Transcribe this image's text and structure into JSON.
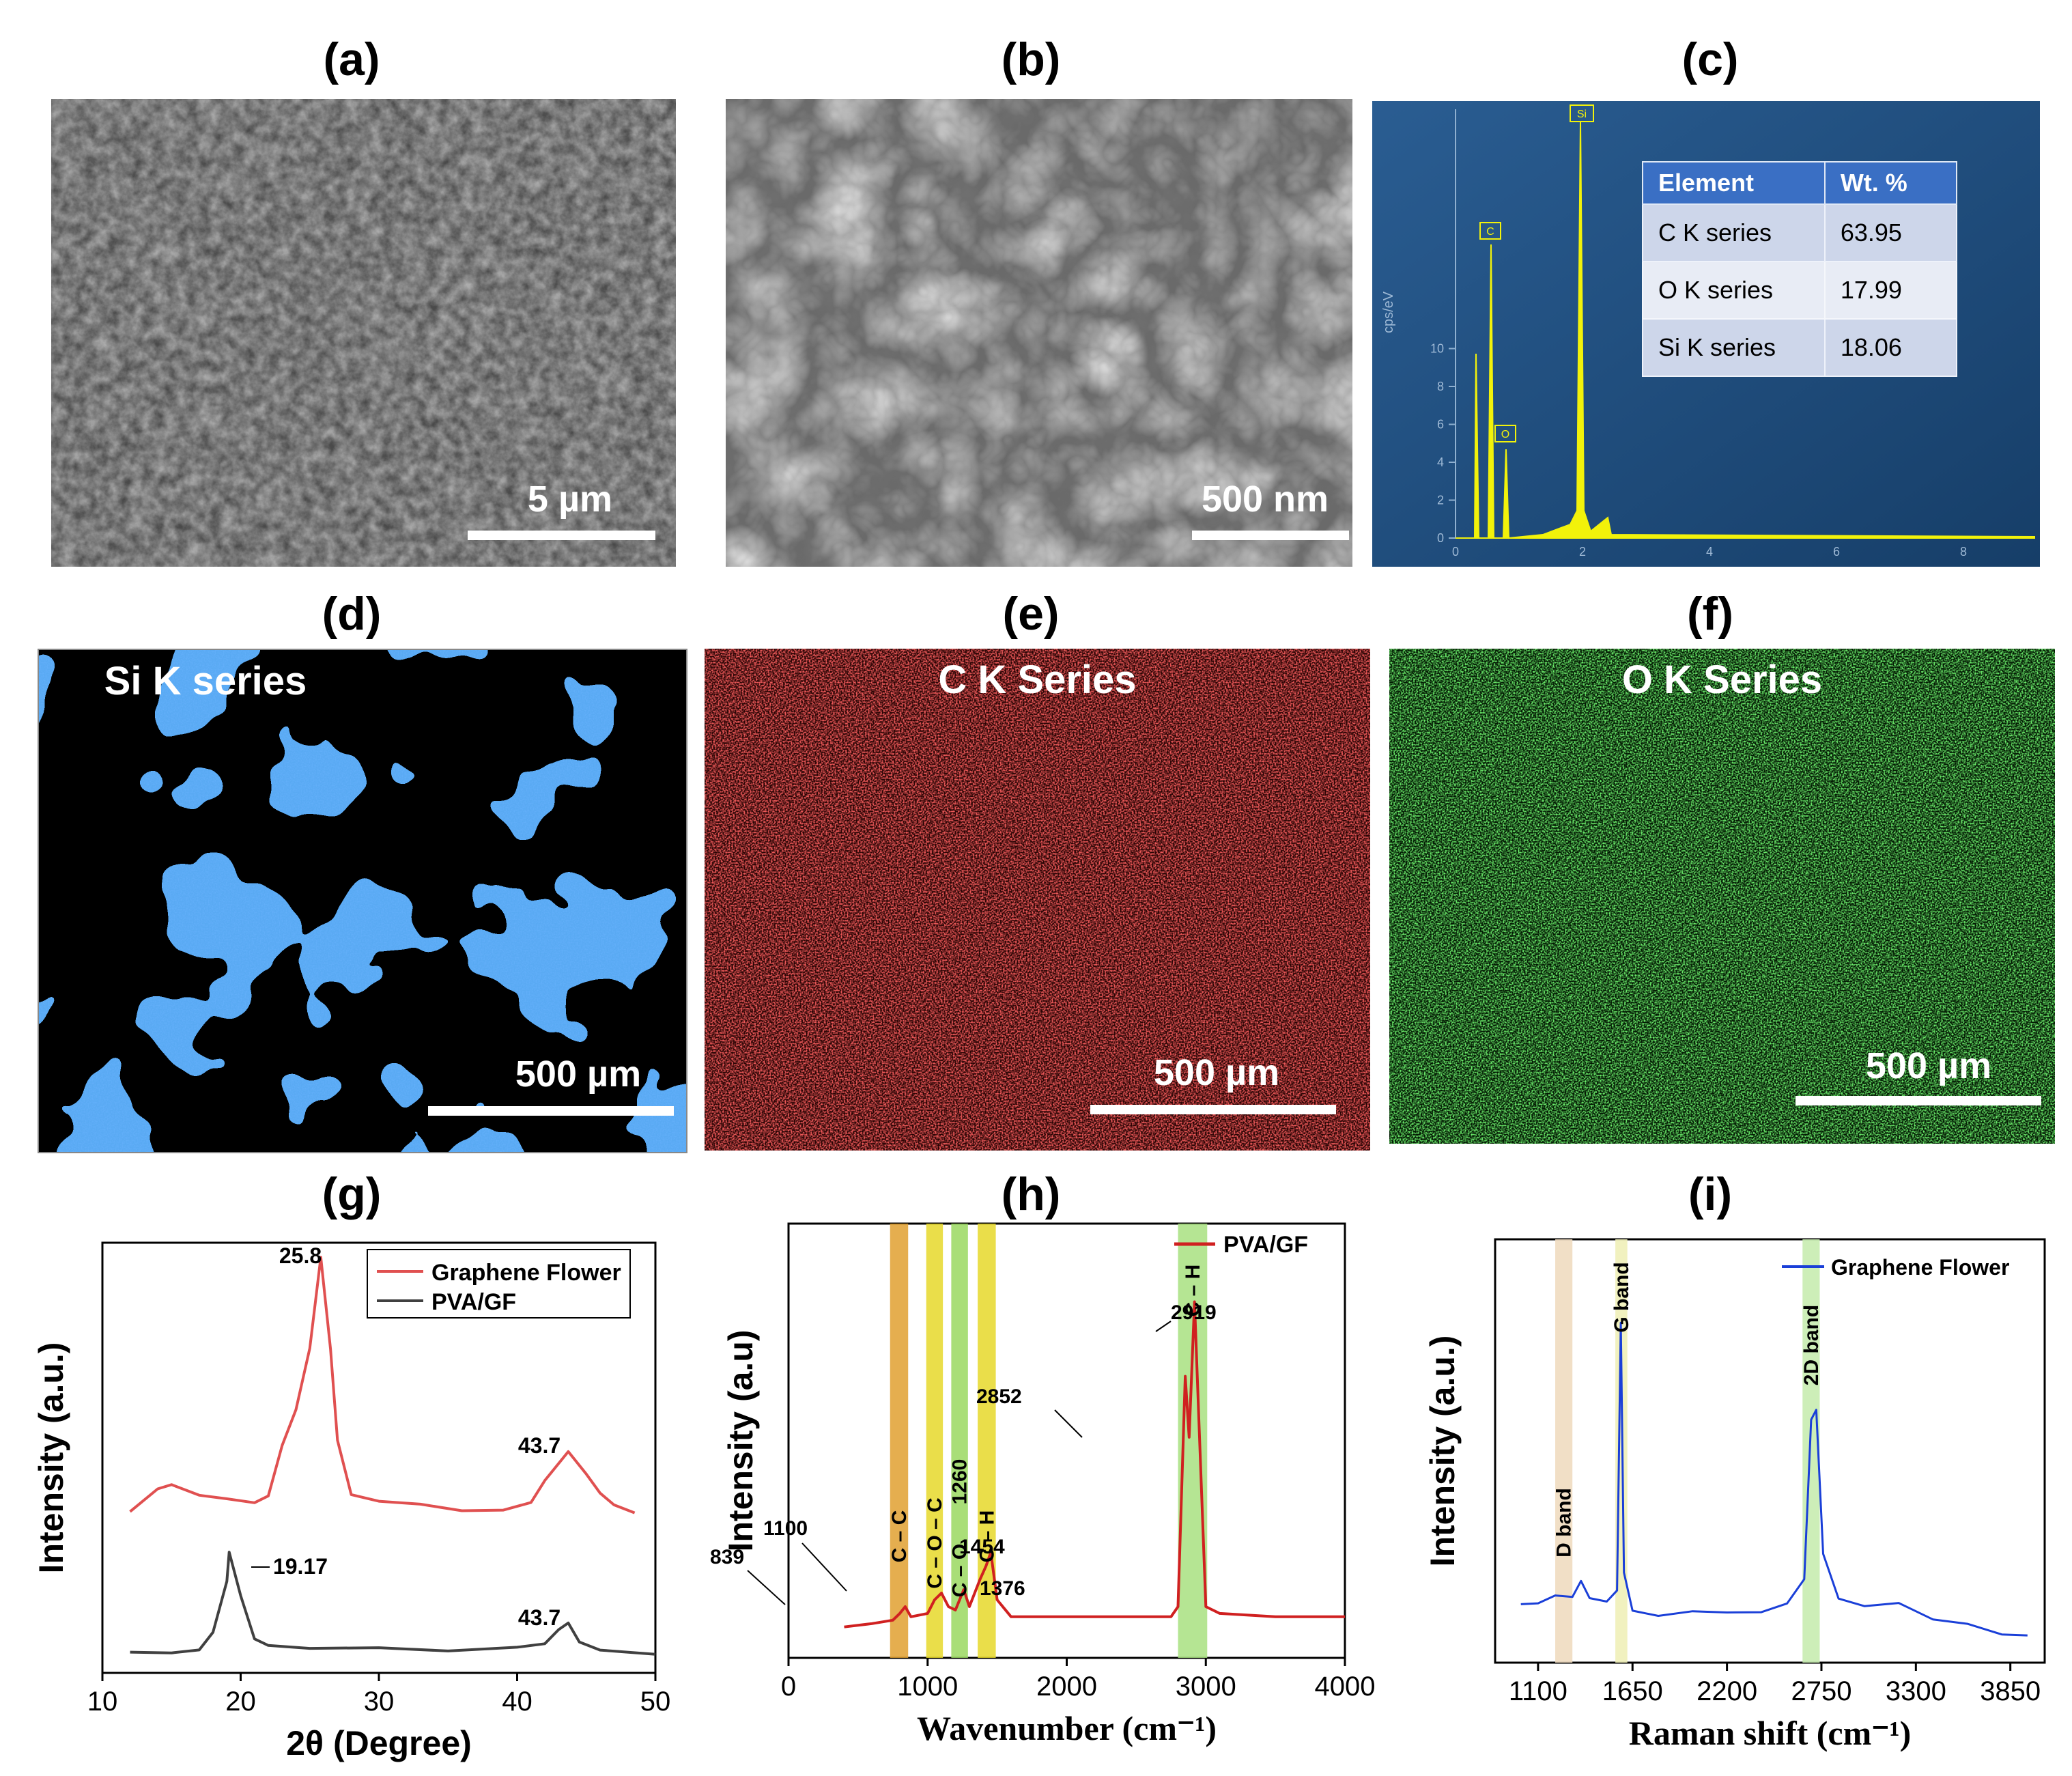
{
  "panel_labels": [
    "(a)",
    "(b)",
    "(c)",
    "(d)",
    "(e)",
    "(f)",
    "(g)",
    "(h)",
    "(i)"
  ],
  "sem": {
    "a": {
      "scale": "5 µm"
    },
    "b": {
      "scale": "500 nm"
    }
  },
  "edx": {
    "y_axis_label": "cps/eV",
    "y_ticks": [
      "0",
      "2",
      "4",
      "6",
      "8",
      "10"
    ],
    "x_ticks": [
      "0",
      "2",
      "4",
      "6",
      "8"
    ],
    "peak_labels": [
      "Si",
      "C",
      "O"
    ],
    "table": {
      "headers": [
        "Element",
        "Wt. %"
      ],
      "rows": [
        {
          "element": "C K series",
          "wt": "63.95"
        },
        {
          "element": "O K series",
          "wt": "17.99"
        },
        {
          "element": "Si K series",
          "wt": "18.06"
        }
      ]
    },
    "colors": {
      "bg": "#1d4a7a",
      "spectrum": "#f2f20a",
      "header": "#3a6fc4"
    }
  },
  "maps": [
    {
      "title": "Si K series",
      "scale": "500 µm",
      "color": "#2a6fe0"
    },
    {
      "title": "C K Series",
      "scale": "500 µm",
      "color": "#d42020"
    },
    {
      "title": "O K Series",
      "scale": "500 µm",
      "color": "#20c020"
    }
  ],
  "chart_data": [
    {
      "panel": "g",
      "type": "line",
      "xlabel": "2θ (Degree)",
      "ylabel": "Intensity (a.u.)",
      "xlim": [
        10,
        50
      ],
      "x_ticks": [
        "10",
        "20",
        "30",
        "40",
        "50"
      ],
      "series": [
        {
          "name": "Graphene Flower",
          "color": "#e05050",
          "x": [
            12,
            14,
            15,
            17,
            19,
            21,
            22,
            23,
            24,
            25,
            25.8,
            26.5,
            27,
            28,
            30,
            33,
            36,
            39,
            41,
            42,
            43.7,
            45,
            46,
            47,
            48.5
          ],
          "y": [
            0.3,
            0.36,
            0.37,
            0.34,
            0.33,
            0.32,
            0.34,
            0.48,
            0.58,
            0.75,
            1.0,
            0.75,
            0.5,
            0.35,
            0.33,
            0.32,
            0.3,
            0.3,
            0.32,
            0.38,
            0.46,
            0.4,
            0.35,
            0.32,
            0.3
          ]
        },
        {
          "name": "PVA/GF",
          "color": "#404040",
          "x": [
            12,
            15,
            17,
            18,
            19,
            19.17,
            20,
            21,
            22,
            25,
            30,
            35,
            40,
            42,
            43,
            43.7,
            44.5,
            46,
            50
          ],
          "y": [
            0.02,
            0.02,
            0.03,
            0.08,
            0.22,
            0.3,
            0.18,
            0.06,
            0.04,
            0.03,
            0.03,
            0.02,
            0.03,
            0.04,
            0.08,
            0.1,
            0.05,
            0.03,
            0.02
          ]
        }
      ],
      "annotations": [
        "25.8",
        "43.7",
        "19.17",
        "43.7"
      ]
    },
    {
      "panel": "h",
      "type": "line",
      "xlabel": "Wavenumber (cm⁻¹)",
      "ylabel": "Intensity (a.u)",
      "xlim": [
        0,
        4000
      ],
      "x_ticks": [
        "0",
        "1000",
        "2000",
        "3000",
        "4000"
      ],
      "series": [
        {
          "name": "PVA/GF",
          "color": "#d02020",
          "x": [
            400,
            600,
            750,
            800,
            839,
            880,
            1000,
            1050,
            1100,
            1150,
            1200,
            1260,
            1300,
            1376,
            1420,
            1454,
            1500,
            1600,
            2000,
            2500,
            2750,
            2800,
            2852,
            2880,
            2919,
            2950,
            3000,
            3100,
            3500,
            4000
          ],
          "y": [
            0.04,
            0.05,
            0.06,
            0.08,
            0.1,
            0.07,
            0.08,
            0.12,
            0.14,
            0.1,
            0.09,
            0.15,
            0.1,
            0.18,
            0.22,
            0.26,
            0.12,
            0.07,
            0.07,
            0.07,
            0.07,
            0.1,
            0.78,
            0.6,
            1.0,
            0.65,
            0.1,
            0.08,
            0.07,
            0.07
          ]
        }
      ],
      "bands": [
        "C – C",
        "C – O – C",
        "C – O",
        "C – H",
        "C – H"
      ],
      "band_tick_label": "1260",
      "annotations": [
        "839",
        "1100",
        "1454",
        "1376",
        "2852",
        "2919"
      ]
    },
    {
      "panel": "i",
      "type": "line",
      "xlabel": "Raman shift (cm⁻¹)",
      "ylabel": "Intensity (a.u.)",
      "xlim": [
        850,
        4050
      ],
      "x_ticks": [
        "1100",
        "1650",
        "2200",
        "2750",
        "3300",
        "3850"
      ],
      "series": [
        {
          "name": "Graphene Flower",
          "color": "#1a3fd8",
          "x": [
            1000,
            1100,
            1200,
            1300,
            1350,
            1400,
            1500,
            1560,
            1582,
            1600,
            1650,
            1800,
            2000,
            2200,
            2400,
            2550,
            2650,
            2690,
            2720,
            2760,
            2850,
            3000,
            3200,
            3400,
            3600,
            3800,
            3950
          ],
          "y": [
            0.15,
            0.14,
            0.15,
            0.14,
            0.18,
            0.14,
            0.14,
            0.18,
            0.88,
            0.25,
            0.16,
            0.15,
            0.16,
            0.15,
            0.14,
            0.15,
            0.2,
            0.6,
            0.62,
            0.25,
            0.14,
            0.13,
            0.15,
            0.12,
            0.12,
            0.1,
            0.1
          ]
        }
      ],
      "bands": [
        "D band",
        "G band",
        "2D band"
      ]
    }
  ]
}
